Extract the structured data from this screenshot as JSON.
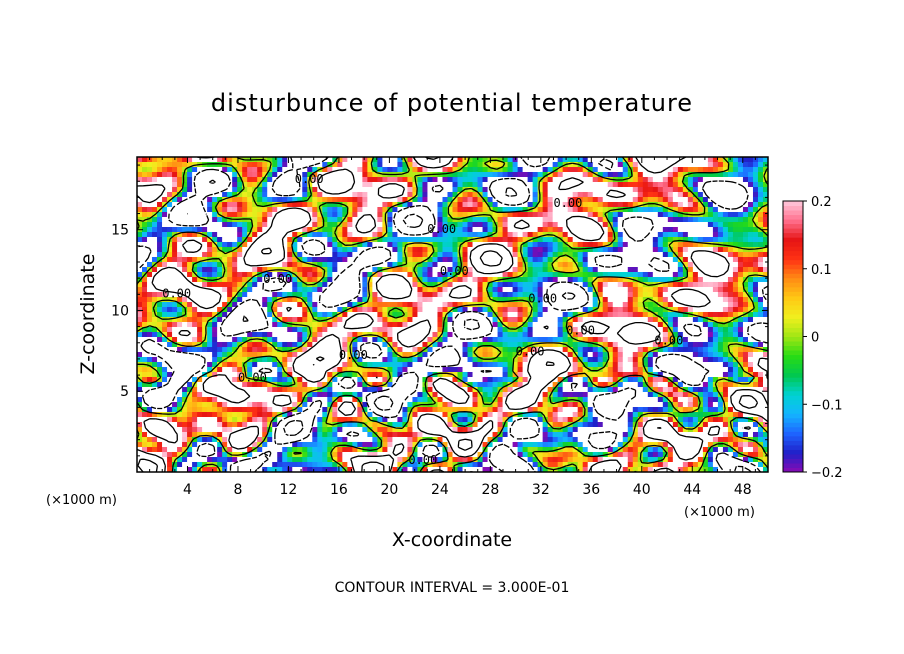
{
  "chart_data": {
    "type": "heatmap",
    "title": "disturbunce of potential temperature",
    "xlabel": "X-coordinate",
    "ylabel": "Z-coordinate",
    "x_unit_label": "(×1000 m)",
    "y_unit_label": "(×1000 m)",
    "xlim": [
      0,
      50
    ],
    "ylim": [
      0,
      19.5
    ],
    "x_ticks": [
      4,
      8,
      12,
      16,
      20,
      24,
      28,
      32,
      36,
      40,
      44,
      48
    ],
    "x_tick_labels": [
      "4",
      "8",
      "12",
      "16",
      "20",
      "24",
      "28",
      "32",
      "36",
      "40",
      "44",
      "48"
    ],
    "y_ticks": [
      5,
      10,
      15
    ],
    "y_tick_labels": [
      "5",
      "10",
      "15"
    ],
    "colorbar": {
      "range": [
        -0.2,
        0.2
      ],
      "ticks": [
        0.2,
        0.1,
        0,
        -0.1,
        -0.2
      ],
      "tick_labels": [
        "0.2",
        "0.1",
        "0",
        "−0.1",
        "−0.2"
      ],
      "colors": [
        "#8a0ab4",
        "#2020c8",
        "#1e64ff",
        "#14b4ff",
        "#00d2d2",
        "#00c850",
        "#28dc14",
        "#a0e614",
        "#f0f01e",
        "#ffc814",
        "#ff8c14",
        "#ff3214",
        "#e61414",
        "#ff6e8c",
        "#ffc8dc"
      ]
    },
    "contour_labels": [
      "0.00",
      "0.00",
      "0.00",
      "0.00",
      "0.00",
      "0.00",
      "0.00",
      "0.00",
      "0.00",
      "0.00",
      "0.00",
      "0.00",
      "0.00"
    ],
    "contour_interval": 0.3
  },
  "footer": {
    "contour_interval_text": "CONTOUR INTERVAL = 3.000E-01"
  }
}
